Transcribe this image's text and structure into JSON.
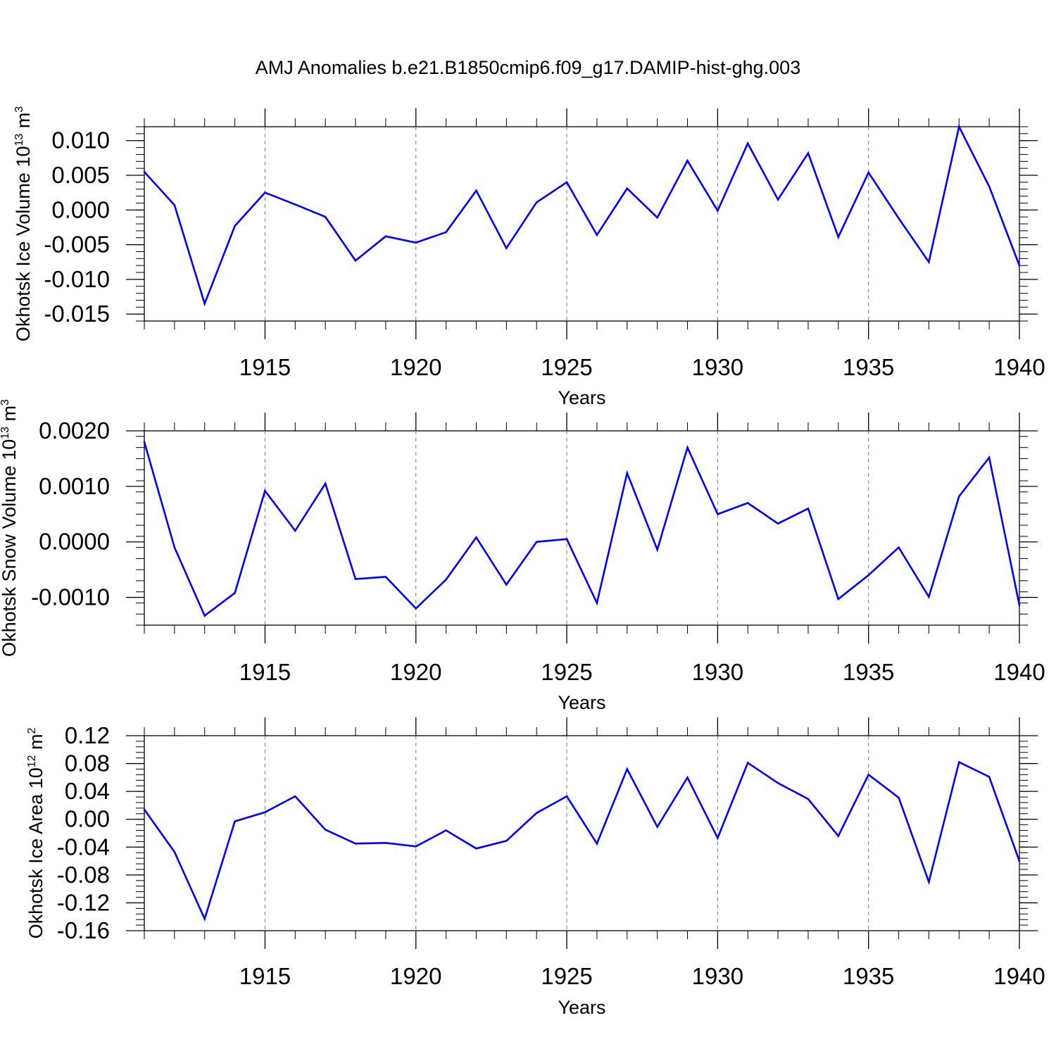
{
  "title": "AMJ Anomalies b.e21.B1850cmip6.f09_g17.DAMIP-hist-ghg.003",
  "line_color": "#0000ff",
  "chart_data": [
    {
      "type": "line",
      "ylabel_main": "Okhotsk Ice Volume 10",
      "ylabel_exp": "13",
      "ylabel_unit": " m",
      "ylabel_unit_exp": "3",
      "xlabel": "Years",
      "xlim": [
        1911,
        1940
      ],
      "ylim": [
        -0.016,
        0.012
      ],
      "x_ticks": [
        "1915",
        "1920",
        "1925",
        "1930",
        "1935",
        "1940"
      ],
      "y_ticks": [
        "0.010",
        "0.005",
        "0.000",
        "-0.005",
        "-0.010",
        "-0.015"
      ],
      "x": [
        1911,
        1912,
        1913,
        1914,
        1915,
        1916,
        1917,
        1918,
        1919,
        1920,
        1921,
        1922,
        1923,
        1924,
        1925,
        1926,
        1927,
        1928,
        1929,
        1930,
        1931,
        1932,
        1933,
        1934,
        1935,
        1936,
        1937,
        1938,
        1939,
        1940
      ],
      "values": [
        0.0055,
        0.0007,
        -0.0135,
        -0.0023,
        0.0025,
        0.0008,
        -0.001,
        -0.0073,
        -0.0038,
        -0.0047,
        -0.0032,
        0.0028,
        -0.0055,
        0.0011,
        0.004,
        -0.0036,
        0.0031,
        -0.0011,
        0.0071,
        -0.0001,
        0.0096,
        0.0015,
        0.0082,
        -0.0039,
        0.0054,
        -0.0012,
        -0.0075,
        0.012,
        0.0034,
        -0.008
      ]
    },
    {
      "type": "line",
      "ylabel_main": "Okhotsk Snow Volume 10",
      "ylabel_exp": "13",
      "ylabel_unit": " m",
      "ylabel_unit_exp": "3",
      "xlabel": "Years",
      "xlim": [
        1911,
        1940
      ],
      "ylim": [
        -0.0015,
        0.002
      ],
      "x_ticks": [
        "1915",
        "1920",
        "1925",
        "1930",
        "1935",
        "1940"
      ],
      "y_ticks": [
        "0.0020",
        "0.0010",
        "0.0000",
        "-0.0010"
      ],
      "x": [
        1911,
        1912,
        1913,
        1914,
        1915,
        1916,
        1917,
        1918,
        1919,
        1920,
        1921,
        1922,
        1923,
        1924,
        1925,
        1926,
        1927,
        1928,
        1929,
        1930,
        1931,
        1932,
        1933,
        1934,
        1935,
        1936,
        1937,
        1938,
        1939,
        1940
      ],
      "values": [
        0.0018,
        -0.0001,
        -0.00133,
        -0.00092,
        0.00092,
        0.0002,
        0.00105,
        -0.00067,
        -0.00063,
        -0.0012,
        -0.00068,
        8e-05,
        -0.00077,
        0.0,
        5e-05,
        -0.0011,
        0.00124,
        -0.00014,
        0.0017,
        0.0005,
        0.0007,
        0.00033,
        0.0006,
        -0.00103,
        -0.0006,
        -0.0001,
        -0.00099,
        0.00082,
        0.00152,
        -0.00114
      ]
    },
    {
      "type": "line",
      "ylabel_main": "Okhotsk Ice Area 10",
      "ylabel_exp": "12",
      "ylabel_unit": " m",
      "ylabel_unit_exp": "2",
      "xlabel": "Years",
      "xlim": [
        1911,
        1940
      ],
      "ylim": [
        -0.16,
        0.12
      ],
      "x_ticks": [
        "1915",
        "1920",
        "1925",
        "1930",
        "1935",
        "1940"
      ],
      "y_ticks": [
        "0.12",
        "0.08",
        "0.04",
        "0.00",
        "-0.04",
        "-0.08",
        "-0.12",
        "-0.16"
      ],
      "x": [
        1911,
        1912,
        1913,
        1914,
        1915,
        1916,
        1917,
        1918,
        1919,
        1920,
        1921,
        1922,
        1923,
        1924,
        1925,
        1926,
        1927,
        1928,
        1929,
        1930,
        1931,
        1932,
        1933,
        1934,
        1935,
        1936,
        1937,
        1938,
        1939,
        1940
      ],
      "values": [
        0.014,
        -0.047,
        -0.143,
        -0.003,
        0.01,
        0.033,
        -0.015,
        -0.035,
        -0.034,
        -0.039,
        -0.016,
        -0.042,
        -0.031,
        0.009,
        0.033,
        -0.035,
        0.072,
        -0.011,
        0.06,
        -0.027,
        0.081,
        0.052,
        0.029,
        -0.024,
        0.064,
        0.031,
        -0.09,
        0.082,
        0.061,
        -0.06
      ]
    }
  ]
}
